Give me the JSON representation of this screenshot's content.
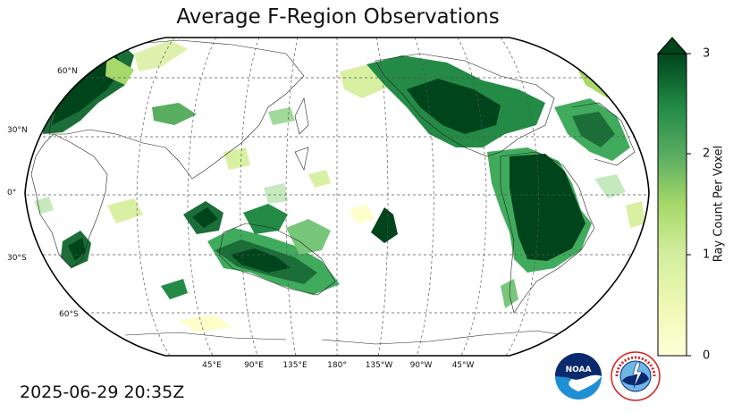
{
  "title": "Average F-Region Observations",
  "timestamp": "2025-06-29 20:35Z",
  "colorbar": {
    "label": "Ray Count Per Voxel",
    "ticks": [
      "0",
      "1",
      "2",
      "3"
    ],
    "range": [
      0,
      3
    ],
    "extend": "max",
    "color_low": "#ffffd9",
    "color_mid": "#7cc47a",
    "color_high": "#00441b"
  },
  "map": {
    "projection": "Robinson",
    "central_longitude": 180,
    "lat_labels": [
      "60°N",
      "30°N",
      "0°",
      "30°S",
      "60°S"
    ],
    "lon_labels": [
      "45°E",
      "90°E",
      "135°E",
      "180°",
      "135°W",
      "90°W",
      "45°W"
    ],
    "gridlines": true,
    "dense_regions": [
      "North America",
      "South America",
      "Europe",
      "Southern Africa",
      "Australia"
    ]
  },
  "logos": [
    {
      "name": "noaa-logo",
      "text": "NOAA"
    },
    {
      "name": "nws-logo",
      "text": "NATIONAL WEATHER SERVICE"
    }
  ]
}
